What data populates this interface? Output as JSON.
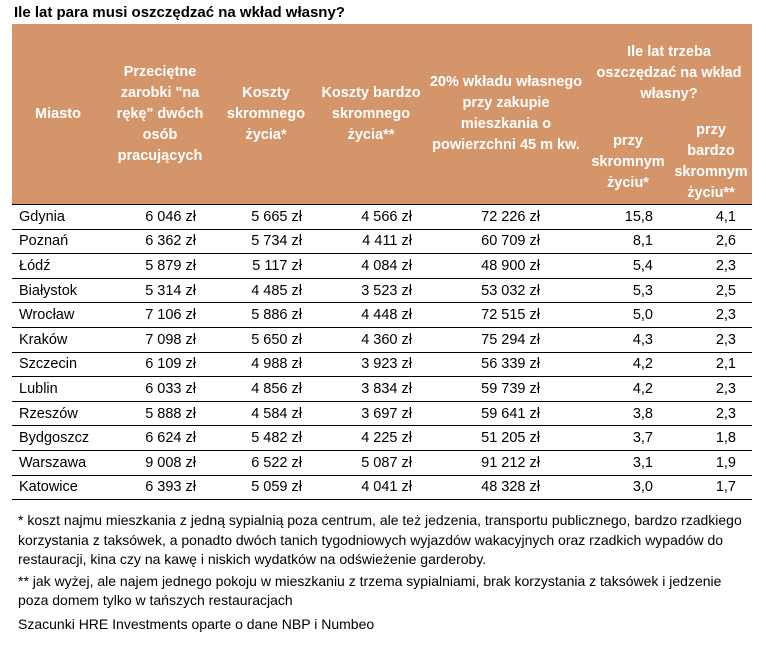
{
  "title": "Ile lat para musi oszczędzać na wkład własny?",
  "headers": {
    "city": "Miasto",
    "earnings": "Przeciętne zarobki \"na rękę\" dwóch osób pracujących",
    "cost_modest": "Koszty skromnego życia*",
    "cost_very_modest": "Koszty bardzo skromnego życia**",
    "down_payment": "20% wkładu własnego przy zakupie mieszkania o powierzchni 45 m kw.",
    "years_group": "Ile lat trzeba oszczędzać na wkład własny?",
    "years_modest": "przy skromnym życiu*",
    "years_very_modest": "przy bardzo skromnym życiu**"
  },
  "rows": [
    {
      "city": "Gdynia",
      "earnings": "6 046 zł",
      "cost_modest": "5 665 zł",
      "cost_very_modest": "4 566 zł",
      "down_payment": "72 226 zł",
      "years_modest": "15,8",
      "years_very_modest": "4,1"
    },
    {
      "city": "Poznań",
      "earnings": "6 362 zł",
      "cost_modest": "5 734 zł",
      "cost_very_modest": "4 411 zł",
      "down_payment": "60 709 zł",
      "years_modest": "8,1",
      "years_very_modest": "2,6"
    },
    {
      "city": "Łódź",
      "earnings": "5 879 zł",
      "cost_modest": "5 117 zł",
      "cost_very_modest": "4 084 zł",
      "down_payment": "48 900 zł",
      "years_modest": "5,4",
      "years_very_modest": "2,3"
    },
    {
      "city": "Białystok",
      "earnings": "5 314 zł",
      "cost_modest": "4 485 zł",
      "cost_very_modest": "3 523 zł",
      "down_payment": "53 032 zł",
      "years_modest": "5,3",
      "years_very_modest": "2,5"
    },
    {
      "city": "Wrocław",
      "earnings": "7 106 zł",
      "cost_modest": "5 886 zł",
      "cost_very_modest": "4 448 zł",
      "down_payment": "72 515 zł",
      "years_modest": "5,0",
      "years_very_modest": "2,3"
    },
    {
      "city": "Kraków",
      "earnings": "7 098 zł",
      "cost_modest": "5 650 zł",
      "cost_very_modest": "4 360 zł",
      "down_payment": "75 294 zł",
      "years_modest": "4,3",
      "years_very_modest": "2,3"
    },
    {
      "city": "Szczecin",
      "earnings": "6 109 zł",
      "cost_modest": "4 988 zł",
      "cost_very_modest": "3 923 zł",
      "down_payment": "56 339 zł",
      "years_modest": "4,2",
      "years_very_modest": "2,1"
    },
    {
      "city": "Lublin",
      "earnings": "6 033 zł",
      "cost_modest": "4 856 zł",
      "cost_very_modest": "3 834 zł",
      "down_payment": "59 739 zł",
      "years_modest": "4,2",
      "years_very_modest": "2,3"
    },
    {
      "city": "Rzeszów",
      "earnings": "5 888 zł",
      "cost_modest": "4 584 zł",
      "cost_very_modest": "3 697 zł",
      "down_payment": "59 641 zł",
      "years_modest": "3,8",
      "years_very_modest": "2,3"
    },
    {
      "city": "Bydgoszcz",
      "earnings": "6 624 zł",
      "cost_modest": "5 482 zł",
      "cost_very_modest": "4 225 zł",
      "down_payment": "51 205 zł",
      "years_modest": "3,7",
      "years_very_modest": "1,8"
    },
    {
      "city": "Warszawa",
      "earnings": "9 008 zł",
      "cost_modest": "6 522 zł",
      "cost_very_modest": "5 087 zł",
      "down_payment": "91 212 zł",
      "years_modest": "3,1",
      "years_very_modest": "1,9"
    },
    {
      "city": "Katowice",
      "earnings": "6 393 zł",
      "cost_modest": "5 059 zł",
      "cost_very_modest": "4 041 zł",
      "down_payment": "48 328 zł",
      "years_modest": "3,0",
      "years_very_modest": "1,7"
    }
  ],
  "footnotes": {
    "note1": "* koszt najmu mieszkania z jedną sypialnią poza centrum, ale też jedzenia, transportu publicznego, bardzo rzadkiego korzystania z taksówek, a ponadto dwóch tanich tygodniowych wyjazdów wakacyjnych oraz rzadkich wypadów do restauracji, kina czy na kawę i niskich wydatków na odświeżenie garderoby.",
    "note2": "** jak wyżej, ale najem jednego pokoju w mieszkaniu z trzema sypialniami, brak korzystania z taksówek i jedzenie poza domem tylko w tańszych restauracjach",
    "source": "Szacunki HRE Investments oparte o dane NBP i Numbeo"
  },
  "colors": {
    "header_bg": "#d4956b",
    "header_text": "#ffffff"
  }
}
